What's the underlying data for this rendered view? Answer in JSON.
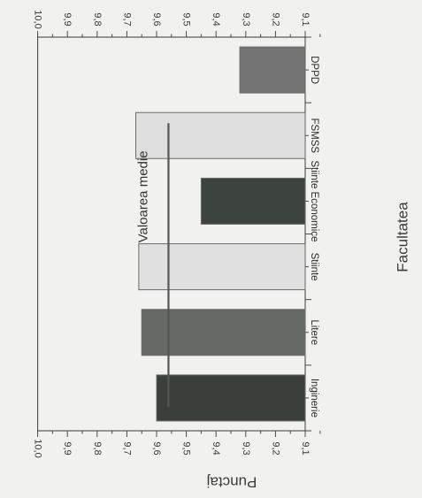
{
  "chart_data": {
    "type": "bar",
    "orientation": "horizontal",
    "categories": [
      "Inginerie",
      "Litere",
      "Stiinte",
      "Stiinte Economice",
      "FSMSS",
      "DPPD"
    ],
    "values": [
      9.6,
      9.65,
      9.66,
      9.45,
      9.67,
      9.32
    ],
    "bar_colors": [
      "#3b3f3c",
      "#666a67",
      "#e0e0e0",
      "#3d433f",
      "#dedede",
      "#747474"
    ],
    "bar_border": "#6a6a6a",
    "xlabel": "Punctaj",
    "ylabel": "Facultatea",
    "xlim": [
      9.1,
      10.0
    ],
    "xticks": [
      9.1,
      9.2,
      9.3,
      9.4,
      9.5,
      9.6,
      9.7,
      9.8,
      9.9,
      10.0
    ],
    "xtick_labels": [
      "9,1",
      "9,2",
      "9,3",
      "9,4",
      "9,5",
      "9,6",
      "9,7",
      "9,8",
      "9,9",
      "10,0"
    ],
    "mean_value": 9.56,
    "mean_label": "Valoarea medie",
    "grid": false
  }
}
